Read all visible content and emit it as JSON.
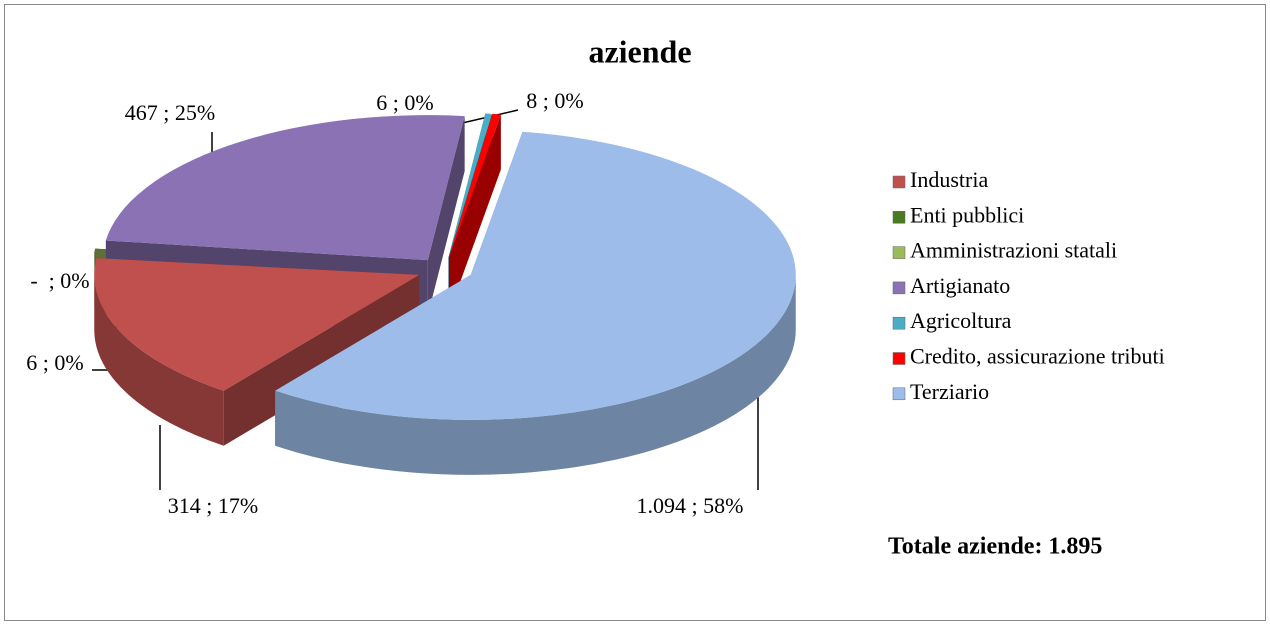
{
  "chart_data": {
    "type": "pie",
    "title": "aziende",
    "categories": [
      "Industria",
      "Enti pubblici",
      "Amministrazioni statali",
      "Artigianato",
      "Agricoltura",
      "Credito, assicurazione tributi",
      "Terziario"
    ],
    "values": [
      314,
      6,
      0,
      467,
      6,
      8,
      1094
    ],
    "value_labels": [
      "314 ; 17%",
      "6 ; 0%",
      "-  ; 0%",
      "467 ; 25%",
      "6 ; 0%",
      "8 ; 0%",
      "1.094 ; 58%"
    ],
    "colors": [
      "#c0504d",
      "#4a7a22",
      "#9bbb59",
      "#8a72b4",
      "#4bacc6",
      "#ff0000",
      "#9dbce9"
    ],
    "legend": "right",
    "annotation": "Totale aziende: 1.895"
  }
}
